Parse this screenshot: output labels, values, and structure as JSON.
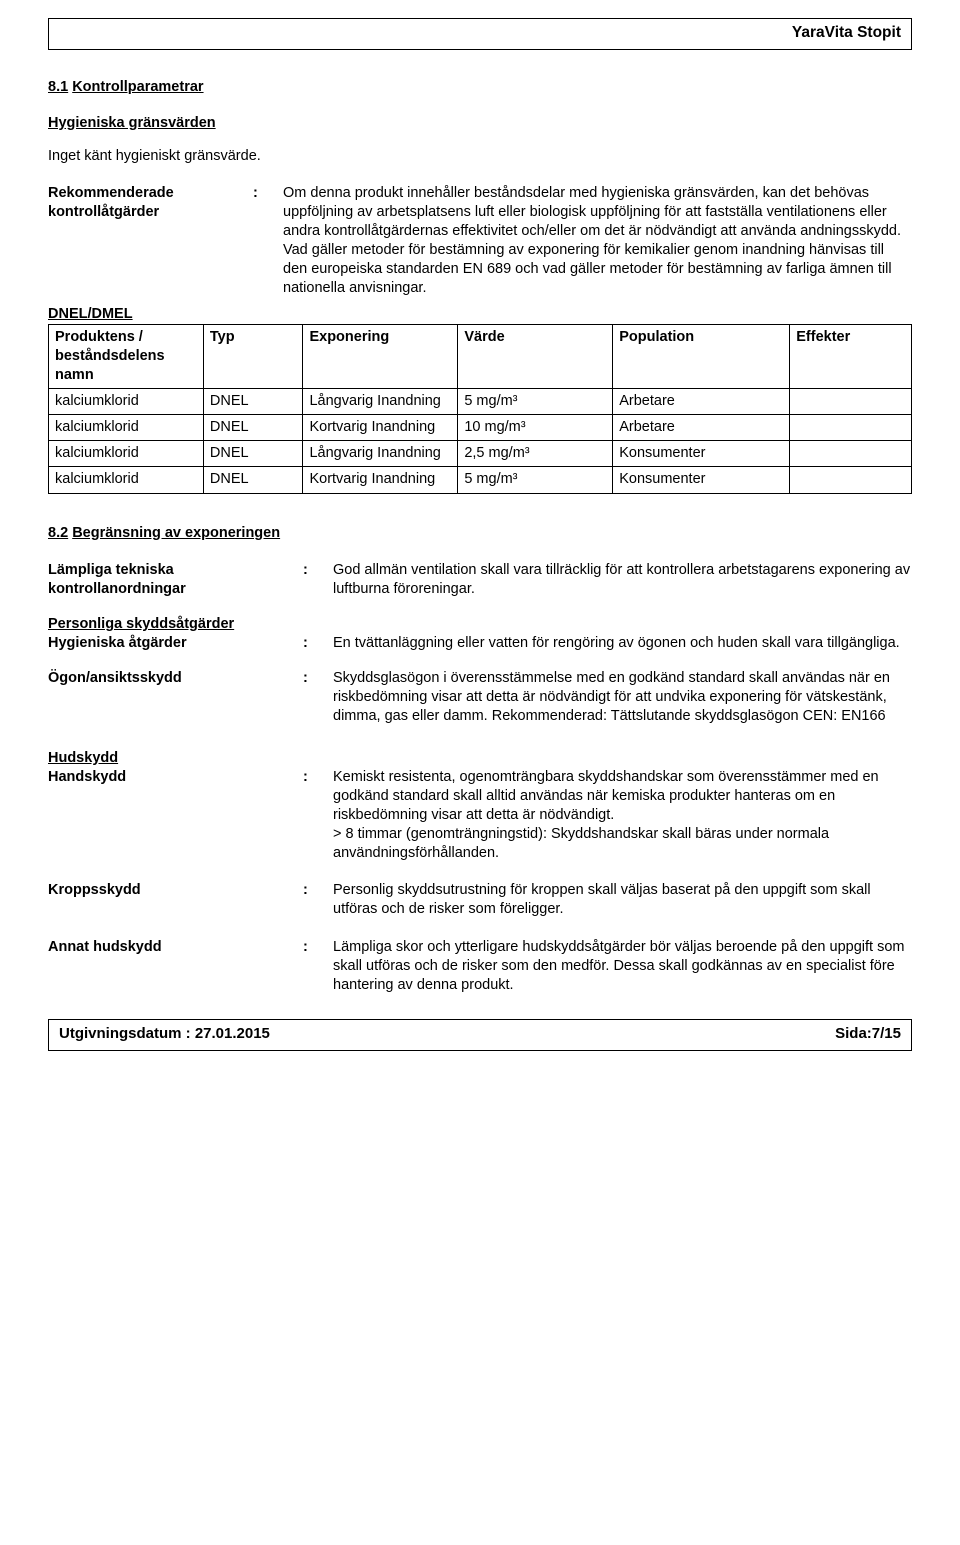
{
  "header": {
    "product": "YaraVita Stopit"
  },
  "section81": {
    "num": "8.1",
    "title": "Kontrollparametrar",
    "hyg_title": "Hygieniska gränsvärden",
    "hyg_text": "Inget känt hygieniskt gränsvärde.",
    "rec_label_line1": "Rekommenderade",
    "rec_label_line2": "kontrollåtgärder",
    "rec_text": "Om denna produkt innehåller beståndsdelar med hygieniska gränsvärden, kan det behövas uppföljning av arbetsplatsens luft eller biologisk uppföljning för att fastställa ventilationens eller andra kontrollåtgärdernas effektivitet och/eller om det är nödvändigt att använda andningsskydd.\nVad gäller metoder för bestämning av exponering för kemikalier genom inandning hänvisas till den europeiska standarden EN 689 och vad gäller metoder för bestämning av farliga ämnen till nationella anvisningar.",
    "dnel_label": "DNEL/DMEL"
  },
  "table": {
    "columns": [
      "Produktens / beståndsdelens namn",
      "Typ",
      "Exponering",
      "Värde",
      "Population",
      "Effekter"
    ],
    "rows": [
      [
        "kalciumklorid",
        "DNEL",
        "Långvarig Inandning",
        "5 mg/m³",
        "Arbetare",
        ""
      ],
      [
        "kalciumklorid",
        "DNEL",
        "Kortvarig Inandning",
        "10 mg/m³",
        "Arbetare",
        ""
      ],
      [
        "kalciumklorid",
        "DNEL",
        "Långvarig Inandning",
        "2,5 mg/m³",
        "Konsumenter",
        ""
      ],
      [
        "kalciumklorid",
        "DNEL",
        "Kortvarig Inandning",
        "5 mg/m³",
        "Konsumenter",
        ""
      ]
    ]
  },
  "section82": {
    "num": "8.2",
    "title": "Begränsning av exponeringen",
    "tech_label_line1": "Lämpliga tekniska",
    "tech_label_line2": "kontrollanordningar",
    "tech_text": "God allmän ventilation skall vara tillräcklig för att kontrollera arbetstagarens exponering av luftburna föroreningar.",
    "pers_heading": "Personliga skyddsåtgärder",
    "hyg_label": "Hygieniska åtgärder",
    "hyg_text": "En tvättanläggning eller vatten för rengöring av ögonen och huden skall vara tillgängliga.",
    "eye_label": "Ögon/ansiktsskydd",
    "eye_text": "Skyddsglasögon i överensstämmelse med en godkänd standard skall användas när en riskbedömning visar att detta är nödvändigt för att undvika exponering för vätskestänk, dimma, gas eller damm. Rekommenderad: Tättslutande skyddsglasögon CEN: EN166",
    "skin_heading": "Hudskydd",
    "hand_label": "Handskydd",
    "hand_text": "Kemiskt resistenta, ogenomträngbara skyddshandskar som överensstämmer med en godkänd standard skall alltid användas när kemiska produkter hanteras om en riskbedömning visar att detta är nödvändigt.\n> 8 timmar (genomträngningstid): Skyddshandskar skall bäras under normala användningsförhållanden.",
    "body_label": "Kroppsskydd",
    "body_text": "Personlig skyddsutrustning för kroppen skall väljas baserat på den uppgift som skall utföras och de risker som föreligger.",
    "other_label": "Annat hudskydd",
    "other_text": "Lämpliga skor och ytterligare hudskyddsåtgärder bör väljas beroende på den uppgift som skall utföras och de risker som den medför. Dessa skall godkännas av en specialist före hantering av denna produkt."
  },
  "footer": {
    "date_label": "Utgivningsdatum : 27.01.2015",
    "page_label": "Sida:7/15"
  }
}
